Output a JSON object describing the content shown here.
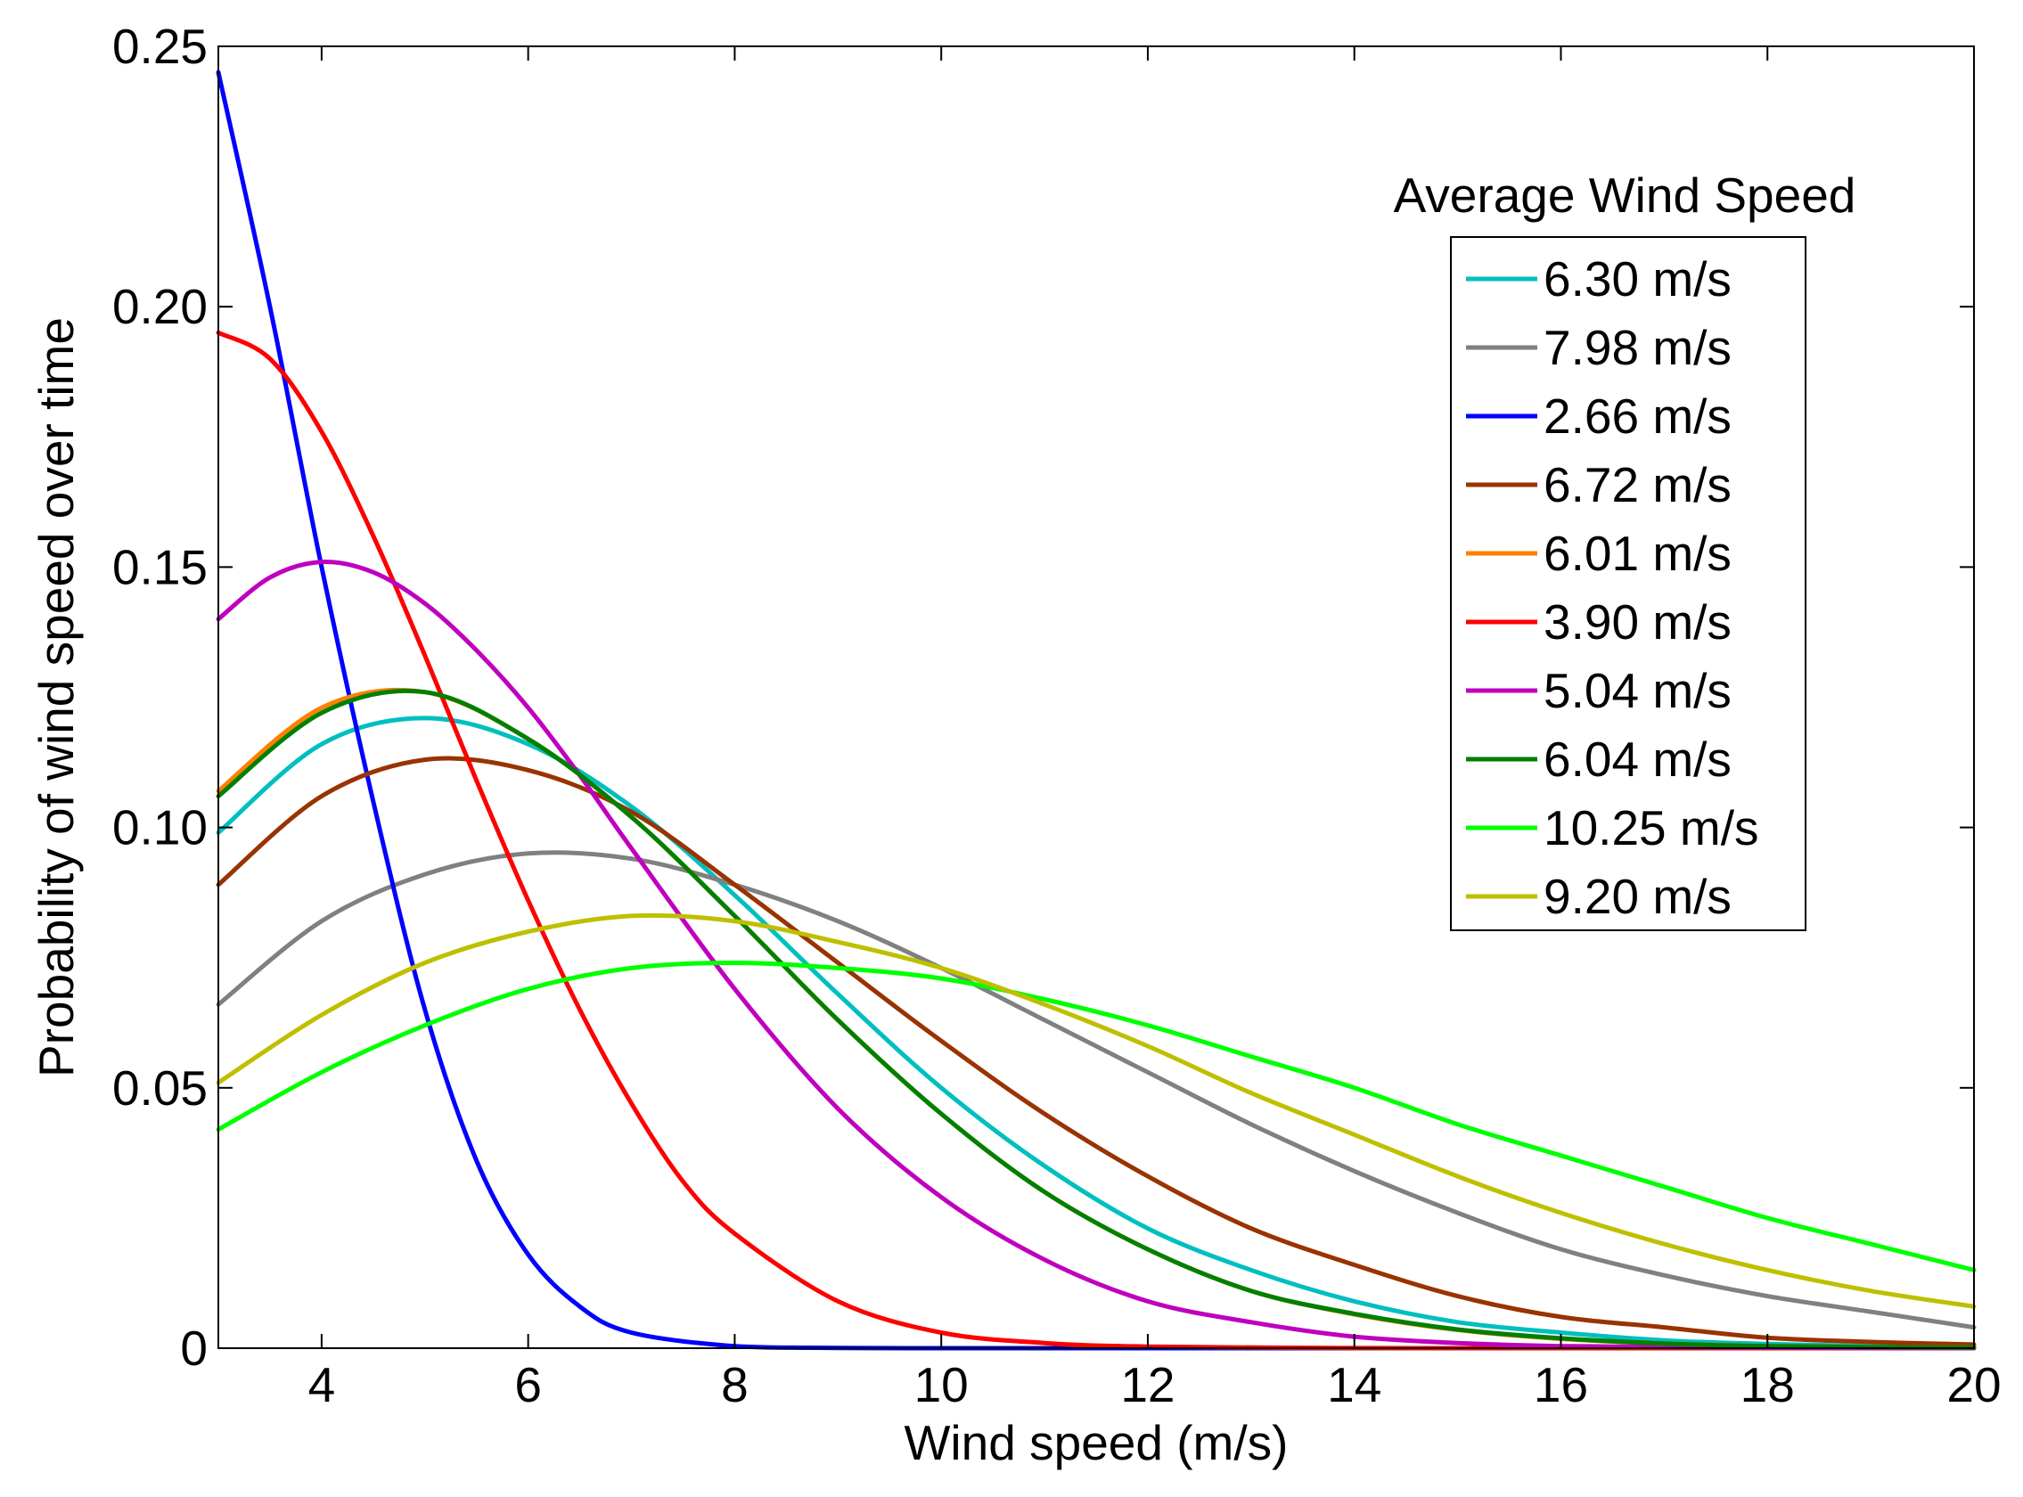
{
  "chart_data": {
    "type": "line",
    "title": "",
    "xlabel": "Wind speed (m/s)",
    "ylabel": "Probability of wind speed over time",
    "xlim": [
      3,
      20
    ],
    "ylim": [
      0,
      0.25
    ],
    "xticks": [
      4,
      6,
      8,
      10,
      12,
      14,
      16,
      18,
      20
    ],
    "xtick_labels": [
      "4",
      "6",
      "8",
      "10",
      "12",
      "14",
      "16",
      "18",
      "20"
    ],
    "yticks": [
      0,
      0.05,
      0.1,
      0.15,
      0.2,
      0.25
    ],
    "ytick_labels": [
      "0",
      "0.05",
      "0.10",
      "0.15",
      "0.20",
      "0.25"
    ],
    "grid": false,
    "legend": {
      "title": "Average Wind Speed",
      "position": "top-right"
    },
    "series": [
      {
        "name": "6.30 m/s",
        "color": "#00BFBF",
        "x": [
          3,
          4,
          5,
          6,
          7,
          8,
          9,
          10,
          11,
          12,
          13,
          14,
          15,
          16,
          17,
          18,
          19,
          20
        ],
        "y": [
          0.099,
          0.116,
          0.121,
          0.116,
          0.104,
          0.087,
          0.068,
          0.05,
          0.035,
          0.023,
          0.015,
          0.009,
          0.005,
          0.003,
          0.0015,
          0.0008,
          0.0004,
          0.0002
        ]
      },
      {
        "name": "7.98 m/s",
        "color": "#808080",
        "x": [
          3,
          4,
          5,
          6,
          7,
          8,
          9,
          10,
          11,
          12,
          13,
          14,
          15,
          16,
          17,
          18,
          19,
          20
        ],
        "y": [
          0.066,
          0.082,
          0.091,
          0.095,
          0.094,
          0.089,
          0.082,
          0.073,
          0.063,
          0.053,
          0.043,
          0.034,
          0.026,
          0.019,
          0.014,
          0.01,
          0.007,
          0.004
        ]
      },
      {
        "name": "2.66 m/s",
        "color": "#0000FF",
        "x": [
          3,
          3.5,
          4,
          4.5,
          5,
          5.5,
          6,
          6.5,
          7,
          8,
          9,
          10,
          12,
          14,
          16,
          18,
          20
        ],
        "y": [
          0.245,
          0.2,
          0.15,
          0.105,
          0.065,
          0.036,
          0.018,
          0.008,
          0.003,
          0.0004,
          5e-05,
          0,
          0,
          0,
          0,
          0,
          0
        ]
      },
      {
        "name": "6.72 m/s",
        "color": "#993300",
        "x": [
          3,
          4,
          5,
          6,
          7,
          8,
          9,
          10,
          11,
          12,
          13,
          14,
          15,
          16,
          17,
          18,
          19,
          20
        ],
        "y": [
          0.089,
          0.106,
          0.113,
          0.111,
          0.103,
          0.089,
          0.074,
          0.059,
          0.045,
          0.033,
          0.023,
          0.016,
          0.01,
          0.006,
          0.004,
          0.002,
          0.0012,
          0.0007
        ]
      },
      {
        "name": "6.01 m/s",
        "color": "#FF8000",
        "x": [
          3,
          4,
          5,
          6,
          7,
          8,
          9,
          10,
          11,
          12,
          13,
          14,
          15,
          16,
          17,
          18,
          19,
          20
        ],
        "y": [
          0.107,
          0.123,
          0.126,
          0.117,
          0.102,
          0.083,
          0.063,
          0.045,
          0.03,
          0.019,
          0.011,
          0.0065,
          0.0035,
          0.0018,
          0.0009,
          0.0004,
          0.0002,
          0.0001
        ]
      },
      {
        "name": "3.90 m/s",
        "color": "#FF0000",
        "x": [
          3,
          3.5,
          4,
          4.5,
          5,
          5.5,
          6,
          6.5,
          7,
          7.5,
          8,
          9,
          10,
          11,
          12,
          14,
          16,
          20
        ],
        "y": [
          0.195,
          0.19,
          0.176,
          0.156,
          0.133,
          0.109,
          0.086,
          0.065,
          0.047,
          0.032,
          0.022,
          0.009,
          0.003,
          0.001,
          0.0003,
          2e-05,
          0,
          0
        ]
      },
      {
        "name": "5.04 m/s",
        "color": "#BF00BF",
        "x": [
          3,
          3.5,
          4,
          4.5,
          5,
          5.5,
          6,
          6.5,
          7,
          8,
          9,
          10,
          11,
          12,
          13,
          14,
          15,
          16,
          18,
          20
        ],
        "y": [
          0.14,
          0.148,
          0.151,
          0.149,
          0.143,
          0.134,
          0.123,
          0.11,
          0.096,
          0.069,
          0.046,
          0.029,
          0.017,
          0.009,
          0.005,
          0.0022,
          0.001,
          0.0004,
          0.0001,
          0
        ]
      },
      {
        "name": "6.04 m/s",
        "color": "#008000",
        "x": [
          3,
          4,
          5,
          6,
          7,
          8,
          9,
          10,
          11,
          12,
          13,
          14,
          15,
          16,
          17,
          18,
          19,
          20
        ],
        "y": [
          0.106,
          0.122,
          0.126,
          0.117,
          0.102,
          0.083,
          0.063,
          0.045,
          0.03,
          0.019,
          0.011,
          0.0066,
          0.0036,
          0.0019,
          0.0009,
          0.0004,
          0.0002,
          0.0001
        ]
      },
      {
        "name": "10.25 m/s",
        "color": "#00FF00",
        "x": [
          3,
          4,
          5,
          6,
          7,
          8,
          9,
          10,
          11,
          12,
          13,
          14,
          15,
          16,
          17,
          18,
          19,
          20
        ],
        "y": [
          0.042,
          0.053,
          0.062,
          0.069,
          0.073,
          0.074,
          0.073,
          0.071,
          0.067,
          0.062,
          0.056,
          0.05,
          0.043,
          0.037,
          0.031,
          0.025,
          0.02,
          0.015
        ]
      },
      {
        "name": "9.20 m/s",
        "color": "#BFBF00",
        "x": [
          3,
          4,
          5,
          6,
          7,
          8,
          9,
          10,
          11,
          12,
          13,
          14,
          15,
          16,
          17,
          18,
          19,
          20
        ],
        "y": [
          0.051,
          0.064,
          0.074,
          0.08,
          0.083,
          0.082,
          0.078,
          0.073,
          0.066,
          0.058,
          0.049,
          0.041,
          0.033,
          0.026,
          0.02,
          0.015,
          0.011,
          0.008
        ]
      }
    ]
  }
}
